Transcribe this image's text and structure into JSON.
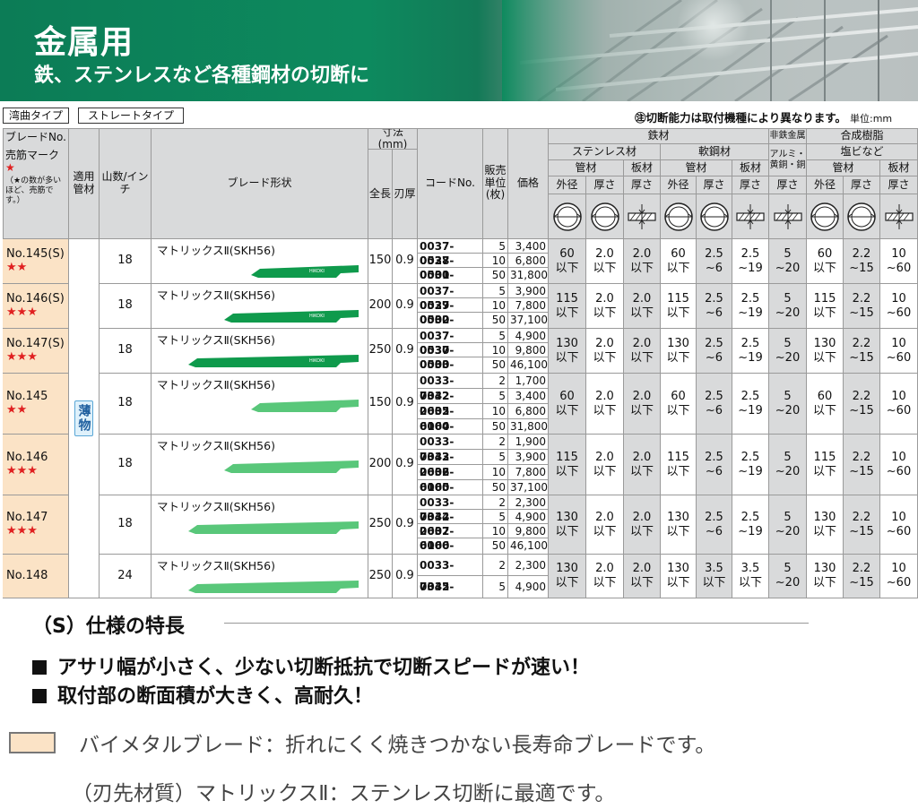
{
  "banner": {
    "title": "金属用",
    "subtitle": "鉄、ステンレスなど各種鋼材の切断に"
  },
  "tabs": {
    "bent": "湾曲タイプ",
    "straight": "ストレートタイプ"
  },
  "note": {
    "text": "㊟切断能力は取付機種により異なります。",
    "unit": "単位:mm"
  },
  "headers": {
    "blade_no": "ブレードNo.",
    "selling_mark": "売筋マーク",
    "star": "★",
    "star_note": "（★の数が多いほど、売筋です。）",
    "material": "適用管材",
    "teeth": "山数/インチ",
    "shape": "ブレード形状",
    "dimension": "寸法(mm)",
    "length": "全長",
    "thickness": "刃厚",
    "code": "コードNo.",
    "unit": "販売単位(枚)",
    "price": "価格",
    "steel": "鉄材",
    "stainless": "ステンレス材",
    "mild_steel": "軟鋼材",
    "nonferrous": "非鉄金属",
    "resin": "合成樹脂",
    "pvc": "塩ビなど",
    "alu": "アルミ・黄銅・銅",
    "pipe": "管材",
    "plate": "板材",
    "outer": "外径",
    "thick": "厚さ"
  },
  "material_label": "薄物",
  "rows": [
    {
      "no": "No.145(S)",
      "stars": "★★",
      "teeth": "18",
      "shape": "マトリックスⅡ(SKH56)",
      "length": "150",
      "thick": "0.9",
      "codes": [
        "0037-0528",
        "0037-0531",
        "0000-4421"
      ],
      "units": [
        "5",
        "10",
        "50"
      ],
      "prices": [
        "3,400",
        "6,800",
        "31,800"
      ],
      "cap": [
        "60\n以下",
        "2.0\n以下",
        "2.0\n以下",
        "60\n以下",
        "2.5\n~6",
        "2.5\n~19",
        "5\n~20",
        "60\n以下",
        "2.2\n~15",
        "10\n~60"
      ]
    },
    {
      "no": "No.146(S)",
      "stars": "★★★",
      "teeth": "18",
      "shape": "マトリックスⅡ(SKH56)",
      "length": "200",
      "thick": "0.9",
      "codes": [
        "0037-0529",
        "0037-0532",
        "0000-4422"
      ],
      "units": [
        "5",
        "10",
        "50"
      ],
      "prices": [
        "3,900",
        "7,800",
        "37,100"
      ],
      "cap": [
        "115\n以下",
        "2.0\n以下",
        "2.0\n以下",
        "115\n以下",
        "2.5\n~6",
        "2.5\n~19",
        "5\n~20",
        "115\n以下",
        "2.2\n~15",
        "10\n~60"
      ]
    },
    {
      "no": "No.147(S)",
      "stars": "★★★",
      "teeth": "18",
      "shape": "マトリックスⅡ(SKH56)",
      "length": "250",
      "thick": "0.9",
      "codes": [
        "0037-0530",
        "0037-0533",
        "0000-4423"
      ],
      "units": [
        "5",
        "10",
        "50"
      ],
      "prices": [
        "4,900",
        "9,800",
        "46,100"
      ],
      "cap": [
        "130\n以下",
        "2.0\n以下",
        "2.0\n以下",
        "130\n以下",
        "2.5\n~6",
        "2.5\n~19",
        "5\n~20",
        "130\n以下",
        "2.2\n~15",
        "10\n~60"
      ]
    },
    {
      "no": "No.145",
      "stars": "★★",
      "teeth": "18",
      "shape": "マトリックスⅡ(SKH56)",
      "length": "150",
      "thick": "0.9",
      "codes": [
        "0033-7342",
        "0032-2605",
        "0032-6164",
        "0000-4416"
      ],
      "units": [
        "2",
        "5",
        "10",
        "50"
      ],
      "prices": [
        "1,700",
        "3,400",
        "6,800",
        "31,800"
      ],
      "cap": [
        "60\n以下",
        "2.0\n以下",
        "2.0\n以下",
        "60\n以下",
        "2.5\n~6",
        "2.5\n~19",
        "5\n~20",
        "60\n以下",
        "2.2\n~15",
        "10\n~60"
      ]
    },
    {
      "no": "No.146",
      "stars": "★★★",
      "teeth": "18",
      "shape": "マトリックスⅡ(SKH56)",
      "length": "200",
      "thick": "0.9",
      "codes": [
        "0033-7343",
        "0032-2606",
        "0032-6165",
        "0000-3464"
      ],
      "units": [
        "2",
        "5",
        "10",
        "50"
      ],
      "prices": [
        "1,900",
        "3,900",
        "7,800",
        "37,100"
      ],
      "cap": [
        "115\n以下",
        "2.0\n以下",
        "2.0\n以下",
        "115\n以下",
        "2.5\n~6",
        "2.5\n~19",
        "5\n~20",
        "115\n以下",
        "2.2\n~15",
        "10\n~60"
      ]
    },
    {
      "no": "No.147",
      "stars": "★★★",
      "teeth": "18",
      "shape": "マトリックスⅡ(SKH56)",
      "length": "250",
      "thick": "0.9",
      "codes": [
        "0033-7344",
        "0032-2607",
        "0032-6166",
        "0000-4417"
      ],
      "units": [
        "2",
        "5",
        "10",
        "50"
      ],
      "prices": [
        "2,300",
        "4,900",
        "9,800",
        "46,100"
      ],
      "cap": [
        "130\n以下",
        "2.0\n以下",
        "2.0\n以下",
        "130\n以下",
        "2.5\n~6",
        "2.5\n~19",
        "5\n~20",
        "130\n以下",
        "2.2\n~15",
        "10\n~60"
      ]
    },
    {
      "no": "No.148",
      "stars": "",
      "teeth": "24",
      "shape": "マトリックスⅡ(SKH56)",
      "length": "250",
      "thick": "0.9",
      "codes": [
        "0033-7345",
        "0032-6163"
      ],
      "units": [
        "2",
        "5"
      ],
      "prices": [
        "2,300",
        "4,900"
      ],
      "cap": [
        "130\n以下",
        "2.0\n以下",
        "2.0\n以下",
        "130\n以下",
        "3.5\n以下",
        "3.5\n以下",
        "5\n~20",
        "130\n以下",
        "2.2\n~15",
        "10\n~60"
      ]
    }
  ],
  "features": {
    "title": "（S）仕様の特長",
    "bullets": [
      "アサリ幅が小さく、少ない切断抵抗で切断スピードが速い！",
      "取付部の断面積が大きく、高耐久！"
    ]
  },
  "legend": {
    "bimetal": "バイメタルブレード：折れにくく焼きつかない長寿命ブレードです。",
    "material": "（刃先材質）マトリックスⅡ：ステンレス切断に最適です。"
  }
}
